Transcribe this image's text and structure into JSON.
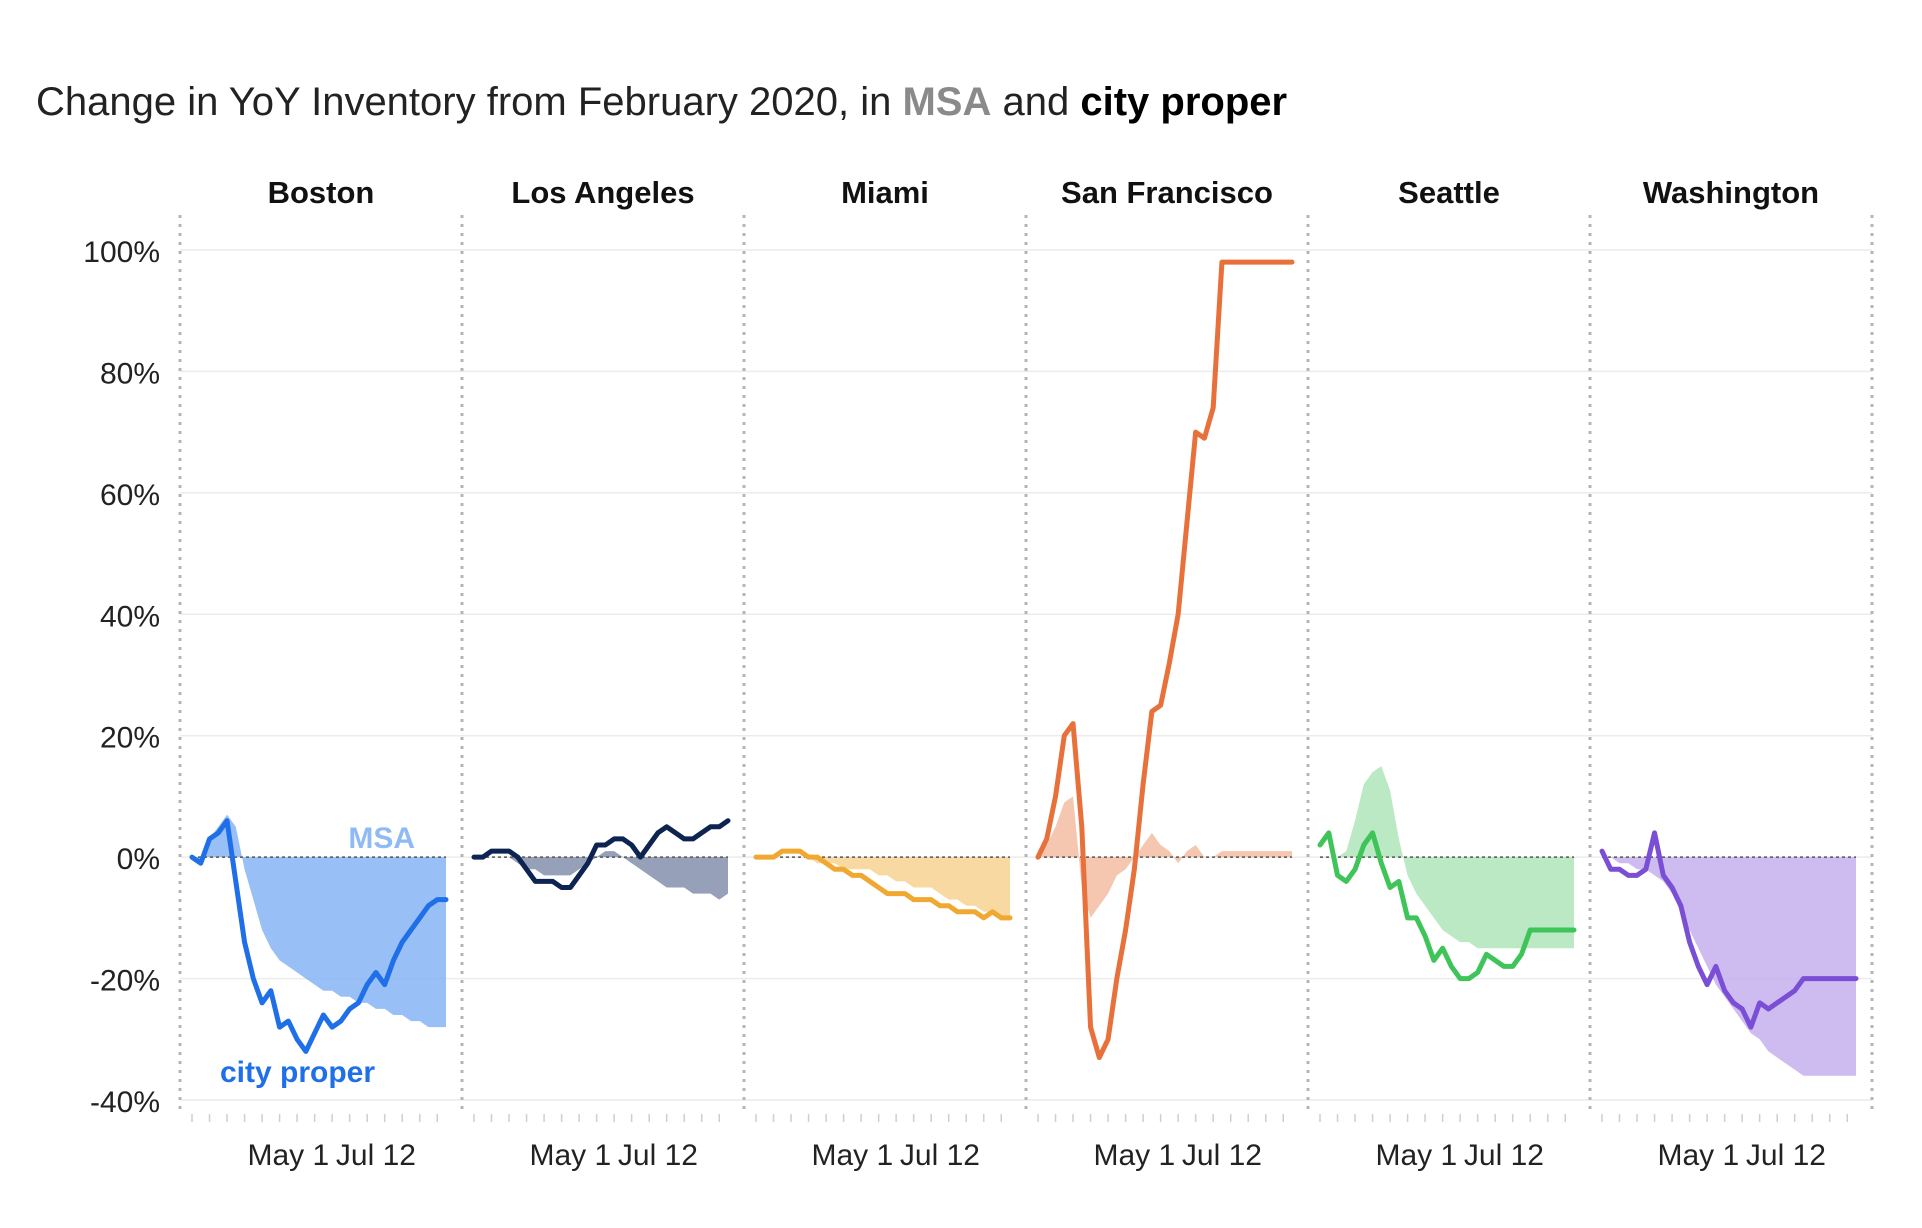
{
  "title": {
    "prefix": "Change in YoY Inventory from February 2020, in",
    "msa": "MSA",
    "and": "and",
    "city": "city proper"
  },
  "annotations": {
    "msa": "MSA",
    "city": "city proper"
  },
  "chart_data": {
    "type": "line",
    "title": "Change in YoY Inventory from February 2020, in MSA and city proper",
    "ylim": [
      -40,
      100
    ],
    "y_ticks": [
      "100%",
      "80%",
      "60%",
      "40%",
      "20%",
      "0%",
      "-20%",
      "-40%"
    ],
    "y_tick_values": [
      100,
      80,
      60,
      40,
      20,
      0,
      -20,
      -40
    ],
    "x_tick_labels": [
      "May 1",
      "Jul 12"
    ],
    "x_tick_values": [
      11,
      21
    ],
    "x_range": [
      0,
      29
    ],
    "grid": true,
    "series_legend": {
      "MSA": "shaded area",
      "city proper": "line"
    },
    "panels": [
      {
        "name": "Boston",
        "color": "#1f6fe8",
        "area_color": "#7fb0f4",
        "x": [
          0,
          1,
          2,
          3,
          4,
          5,
          6,
          7,
          8,
          9,
          10,
          11,
          12,
          13,
          14,
          15,
          16,
          17,
          18,
          19,
          20,
          21,
          22,
          23,
          24,
          25,
          26,
          27,
          28,
          29
        ],
        "city": [
          0,
          -1,
          3,
          4,
          6,
          -4,
          -14,
          -20,
          -24,
          -22,
          -28,
          -27,
          -30,
          -32,
          -29,
          -26,
          -28,
          -27,
          -25,
          -24,
          -21,
          -19,
          -21,
          -17,
          -14,
          -12,
          -10,
          -8,
          -7,
          -7
        ],
        "msa": [
          0,
          -1,
          3,
          5,
          7,
          5,
          -2,
          -7,
          -12,
          -15,
          -17,
          -18,
          -19,
          -20,
          -21,
          -22,
          -22,
          -23,
          -23,
          -24,
          -24,
          -25,
          -25,
          -26,
          -26,
          -27,
          -27,
          -28,
          -28,
          -28
        ]
      },
      {
        "name": "Los Angeles",
        "color": "#0d2452",
        "area_color": "#7c88a6",
        "x": [
          0,
          1,
          2,
          3,
          4,
          5,
          6,
          7,
          8,
          9,
          10,
          11,
          12,
          13,
          14,
          15,
          16,
          17,
          18,
          19,
          20,
          21,
          22,
          23,
          24,
          25,
          26,
          27,
          28,
          29
        ],
        "city": [
          0,
          0,
          1,
          1,
          1,
          0,
          -2,
          -4,
          -4,
          -4,
          -5,
          -5,
          -3,
          -1,
          2,
          2,
          3,
          3,
          2,
          0,
          2,
          4,
          5,
          4,
          3,
          3,
          4,
          5,
          5,
          6
        ],
        "msa": [
          0,
          0,
          0,
          0,
          0,
          -1,
          -2,
          -2,
          -3,
          -3,
          -3,
          -3,
          -2,
          -1,
          0,
          1,
          1,
          0,
          -1,
          -2,
          -3,
          -4,
          -5,
          -5,
          -5,
          -6,
          -6,
          -6,
          -7,
          -6
        ]
      },
      {
        "name": "Miami",
        "color": "#f0a830",
        "area_color": "#f6cf8a",
        "x": [
          0,
          1,
          2,
          3,
          4,
          5,
          6,
          7,
          8,
          9,
          10,
          11,
          12,
          13,
          14,
          15,
          16,
          17,
          18,
          19,
          20,
          21,
          22,
          23,
          24,
          25,
          26,
          27,
          28,
          29
        ],
        "city": [
          0,
          0,
          0,
          1,
          1,
          1,
          0,
          0,
          -1,
          -2,
          -2,
          -3,
          -3,
          -4,
          -5,
          -6,
          -6,
          -6,
          -7,
          -7,
          -7,
          -8,
          -8,
          -9,
          -9,
          -9,
          -10,
          -9,
          -10,
          -10
        ],
        "msa": [
          0,
          0,
          0,
          0,
          0,
          0,
          0,
          -1,
          -1,
          -1,
          -2,
          -2,
          -2,
          -2,
          -3,
          -3,
          -4,
          -4,
          -5,
          -5,
          -5,
          -6,
          -7,
          -7,
          -8,
          -8,
          -9,
          -9,
          -10,
          -10
        ]
      },
      {
        "name": "San Francisco",
        "color": "#e8703a",
        "area_color": "#f2b89c",
        "x": [
          0,
          1,
          2,
          3,
          4,
          5,
          6,
          7,
          8,
          9,
          10,
          11,
          12,
          13,
          14,
          15,
          16,
          17,
          18,
          19,
          20,
          21,
          22,
          23,
          24,
          25,
          26,
          27,
          28,
          29
        ],
        "city": [
          0,
          3,
          10,
          20,
          22,
          5,
          -28,
          -33,
          -30,
          -20,
          -12,
          -2,
          12,
          24,
          25,
          32,
          40,
          55,
          70,
          69,
          74,
          98,
          98,
          98,
          98,
          98,
          98,
          98,
          98,
          98
        ],
        "msa": [
          0,
          2,
          5,
          9,
          10,
          -5,
          -10,
          -8,
          -6,
          -3,
          -2,
          0,
          2,
          4,
          2,
          1,
          -1,
          1,
          2,
          0,
          0,
          1,
          1,
          1,
          1,
          1,
          1,
          1,
          1,
          1
        ]
      },
      {
        "name": "Seattle",
        "color": "#3fc45a",
        "area_color": "#a9e3b5",
        "x": [
          0,
          1,
          2,
          3,
          4,
          5,
          6,
          7,
          8,
          9,
          10,
          11,
          12,
          13,
          14,
          15,
          16,
          17,
          18,
          19,
          20,
          21,
          22,
          23,
          24,
          25,
          26,
          27,
          28,
          29
        ],
        "city": [
          2,
          4,
          -3,
          -4,
          -2,
          2,
          4,
          -1,
          -5,
          -4,
          -10,
          -10,
          -13,
          -17,
          -15,
          -18,
          -20,
          -20,
          -19,
          -16,
          -17,
          -18,
          -18,
          -16,
          -12,
          -12,
          -12,
          -12,
          -12,
          -12
        ],
        "msa": [
          0,
          0,
          0,
          1,
          6,
          12,
          14,
          15,
          11,
          3,
          -3,
          -6,
          -8,
          -10,
          -12,
          -13,
          -14,
          -14,
          -15,
          -15,
          -15,
          -15,
          -15,
          -15,
          -15,
          -15,
          -15,
          -15,
          -15,
          -15
        ]
      },
      {
        "name": "Washington",
        "color": "#7a4fd6",
        "area_color": "#c2abec",
        "x": [
          0,
          1,
          2,
          3,
          4,
          5,
          6,
          7,
          8,
          9,
          10,
          11,
          12,
          13,
          14,
          15,
          16,
          17,
          18,
          19,
          20,
          21,
          22,
          23,
          24,
          25,
          26,
          27,
          28,
          29
        ],
        "city": [
          1,
          -2,
          -2,
          -3,
          -3,
          -2,
          4,
          -3,
          -5,
          -8,
          -14,
          -18,
          -21,
          -18,
          -22,
          -24,
          -25,
          -28,
          -24,
          -25,
          -24,
          -23,
          -22,
          -20,
          -20,
          -20,
          -20,
          -20,
          -20,
          -20
        ],
        "msa": [
          0,
          0,
          -1,
          -1,
          -2,
          -2,
          -3,
          -4,
          -6,
          -9,
          -12,
          -15,
          -18,
          -21,
          -23,
          -25,
          -27,
          -29,
          -30,
          -32,
          -33,
          -34,
          -35,
          -36,
          -36,
          -36,
          -36,
          -36,
          -36,
          -36
        ]
      }
    ]
  }
}
